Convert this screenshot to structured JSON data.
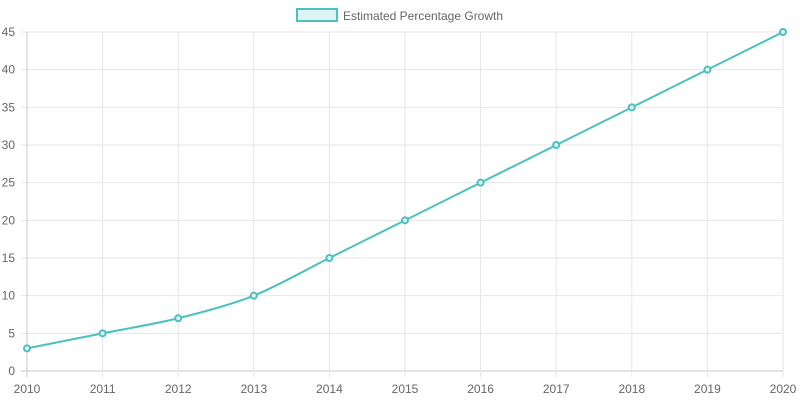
{
  "chart_data": {
    "type": "line",
    "x": [
      "2010",
      "2011",
      "2012",
      "2013",
      "2014",
      "2015",
      "2016",
      "2017",
      "2018",
      "2019",
      "2020"
    ],
    "series": [
      {
        "name": "Estimated Percentage Growth",
        "values": [
          3,
          5,
          7,
          10,
          15,
          20,
          25,
          30,
          35,
          40,
          45
        ],
        "color": "#4bc0c0",
        "fill": "#dff3f3"
      }
    ],
    "ylim": [
      0,
      45
    ],
    "yticks": [
      0,
      5,
      10,
      15,
      20,
      25,
      30,
      35,
      40,
      45
    ],
    "legend_position": "top-center",
    "grid": true
  }
}
